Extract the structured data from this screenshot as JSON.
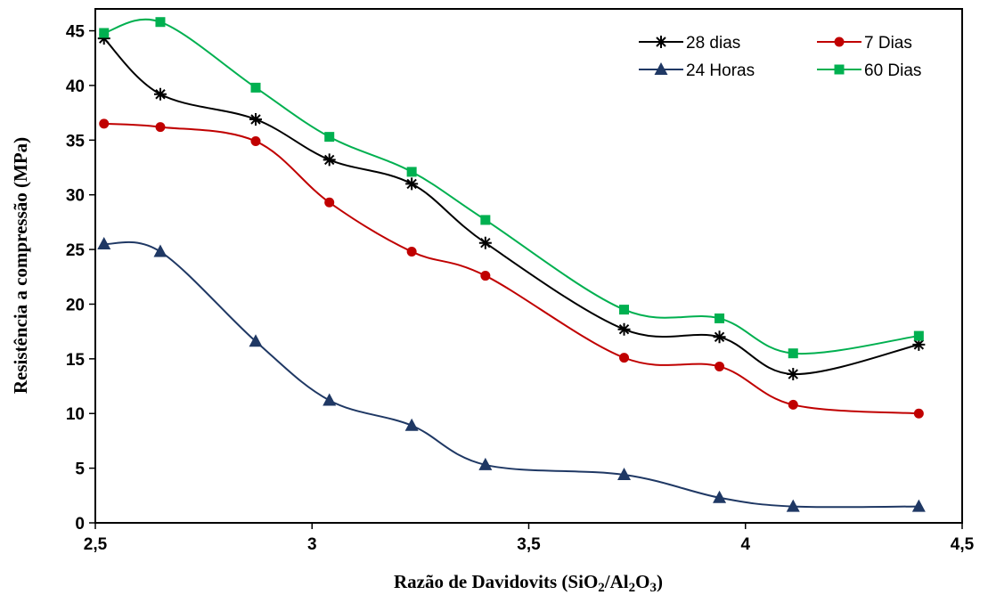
{
  "chart_data": {
    "type": "line",
    "xlabel_parts": [
      "Razão de Davidovits (SiO",
      "2",
      "/Al",
      "2",
      "O",
      "3",
      ")"
    ],
    "ylabel": "Resistência a compressão (MPa)",
    "xlim": [
      2.5,
      4.5
    ],
    "ylim": [
      0,
      47
    ],
    "x_ticks": [
      2.5,
      3,
      3.5,
      4,
      4.5
    ],
    "x_tick_labels": [
      "2,5",
      "3",
      "3,5",
      "4",
      "4,5"
    ],
    "y_ticks": [
      0,
      5,
      10,
      15,
      20,
      25,
      30,
      35,
      40,
      45
    ],
    "y_tick_labels": [
      "0",
      "5",
      "10",
      "15",
      "20",
      "25",
      "30",
      "35",
      "40",
      "45"
    ],
    "grid": false,
    "legend_position": "top-right",
    "x": [
      2.52,
      2.65,
      2.87,
      3.04,
      3.23,
      3.4,
      3.72,
      3.94,
      4.11,
      4.4
    ],
    "series": [
      {
        "name": "28 dias",
        "color": "#000000",
        "marker": "asterisk",
        "values": [
          44.3,
          39.2,
          36.9,
          33.2,
          31.0,
          25.6,
          17.7,
          17.0,
          13.6,
          16.3
        ]
      },
      {
        "name": "7 Dias",
        "color": "#c00000",
        "marker": "circle",
        "values": [
          36.5,
          36.2,
          34.9,
          29.3,
          24.8,
          22.6,
          15.1,
          14.3,
          10.8,
          10.0
        ]
      },
      {
        "name": "24 Horas",
        "color": "#1f3864",
        "marker": "triangle",
        "values": [
          25.5,
          24.8,
          16.6,
          11.2,
          8.9,
          5.3,
          4.4,
          2.3,
          1.5,
          1.5
        ]
      },
      {
        "name": "60 Dias",
        "color": "#00b050",
        "marker": "square",
        "values": [
          44.8,
          45.8,
          39.8,
          35.3,
          32.1,
          27.7,
          19.5,
          18.7,
          15.5,
          17.1
        ]
      }
    ]
  }
}
